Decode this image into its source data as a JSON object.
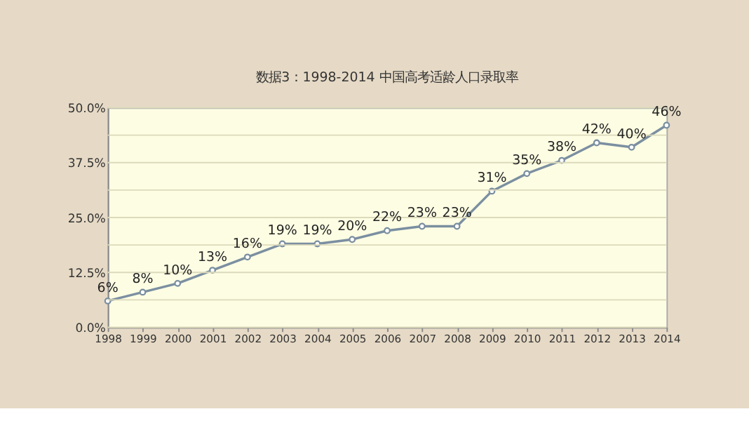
{
  "chart_data": {
    "type": "line",
    "title": "数据3：1998-2014 中国高考适龄人口录取率",
    "categories": [
      "1998",
      "1999",
      "2000",
      "2001",
      "2002",
      "2003",
      "2004",
      "2005",
      "2006",
      "2007",
      "2008",
      "2009",
      "2010",
      "2011",
      "2012",
      "2013",
      "2014"
    ],
    "series": [
      {
        "color": "#7b8fa1",
        "values": [
          6,
          8,
          10,
          13,
          16,
          19,
          19,
          20,
          22,
          23,
          23,
          31,
          35,
          38,
          42,
          41,
          46
        ]
      }
    ],
    "value_labels": [
      "6%",
      "8%",
      "10%",
      "13%",
      "16%",
      "19%",
      "19%",
      "20%",
      "22%",
      "23%",
      "23%",
      "31%",
      "35%",
      "38%",
      "42%",
      "40%",
      "46%"
    ],
    "ylim": [
      0,
      50
    ],
    "yticks": [
      {
        "value": 0,
        "label": "0.0%"
      },
      {
        "value": 6.25,
        "label": null
      },
      {
        "value": 12.5,
        "label": "12.5%"
      },
      {
        "value": 18.75,
        "label": null
      },
      {
        "value": 25,
        "label": "25.0%"
      },
      {
        "value": 31.25,
        "label": null
      },
      {
        "value": 37.5,
        "label": "37.5%"
      },
      {
        "value": 43.75,
        "label": null
      },
      {
        "value": 50,
        "label": "50.0%"
      }
    ],
    "grid": "y",
    "marker": "circle",
    "line_style": "solid"
  }
}
